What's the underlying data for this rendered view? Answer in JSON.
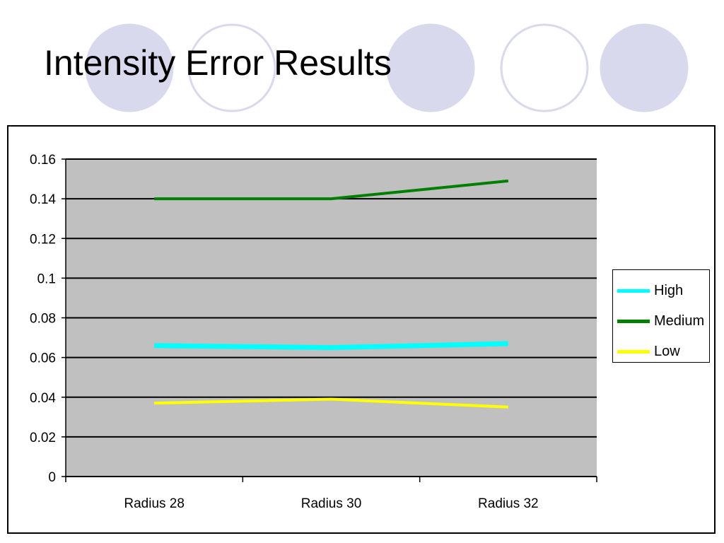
{
  "slide": {
    "title": "Intensity Error Results"
  },
  "decor": {
    "circles": [
      {
        "fill": "#d9d9ee",
        "stroke": "#d9d9ee"
      },
      {
        "fill": "#ffffff",
        "stroke": "#d9d9ee"
      },
      {
        "fill": "#d9d9ee",
        "stroke": "#d9d9ee"
      },
      {
        "fill": "#ffffff",
        "stroke": "#d9d9ee"
      },
      {
        "fill": "#d9d9ee",
        "stroke": "#d9d9ee"
      }
    ]
  },
  "chart_data": {
    "type": "line",
    "title": "",
    "xlabel": "",
    "ylabel": "",
    "categories": [
      "Radius 28",
      "Radius 30",
      "Radius 32"
    ],
    "ylim": [
      0,
      0.16
    ],
    "yticks": [
      "0",
      "0.02",
      "0.04",
      "0.06",
      "0.08",
      "0.1",
      "0.12",
      "0.14",
      "0.16"
    ],
    "grid": true,
    "plot_background": "#c0c0c0",
    "legend_position": "right",
    "series": [
      {
        "name": "High",
        "values": [
          0.066,
          0.065,
          0.067
        ],
        "color": "#00ffff"
      },
      {
        "name": "Medium",
        "values": [
          0.14,
          0.14,
          0.149
        ],
        "color": "#008000"
      },
      {
        "name": "Low",
        "values": [
          0.037,
          0.039,
          0.035
        ],
        "color": "#ffff00"
      }
    ]
  }
}
